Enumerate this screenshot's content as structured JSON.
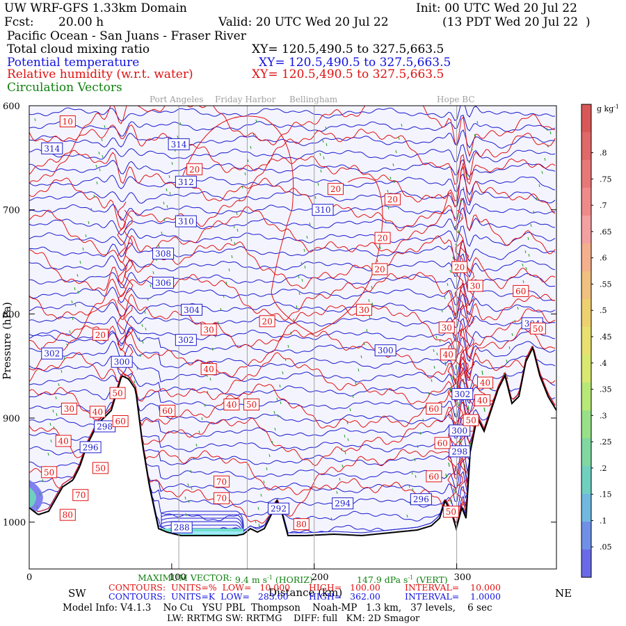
{
  "header": {
    "model": "UW WRF-GFS 1.33km Domain",
    "init": "Init: 00 UTC Wed 20 Jul 22",
    "fcst_label": "Fcst:",
    "fcst_value": "20.00 h",
    "valid": "Valid: 20 UTC Wed 20 Jul 22",
    "local": "(13 PDT Wed 20 Jul 22  )",
    "region": "Pacific Ocean - San Juans - Fraser River",
    "field1": "Total cloud mixing ratio",
    "field1_xy": "XY= 120.5,490.5 to 327.5,663.5",
    "field2": "Potential temperature",
    "field2_xy": "XY= 120.5,490.5 to 327.5,663.5",
    "field3": "Relative humidity (w.r.t. water)",
    "field3_xy": "XY= 120.5,490.5 to 327.5,663.5",
    "field4": "Circulation Vectors"
  },
  "places": {
    "port_angeles": "Port Angeles",
    "friday_harbor": "Friday Harbor",
    "bellingham": "Bellingham",
    "hope": "Hope BC"
  },
  "chart_data": {
    "type": "contour",
    "xlabel": "Distance (km)",
    "ylabel": "Pressure (hPa)",
    "x_ticks": [
      "0",
      "100",
      "200",
      "300"
    ],
    "x_tick_values": [
      0,
      100,
      200,
      300
    ],
    "xlim": [
      0,
      370
    ],
    "y_ticks": [
      "600",
      "700",
      "800",
      "900",
      "1000"
    ],
    "y_tick_values": [
      600,
      700,
      800,
      900,
      1000
    ],
    "ylim": [
      1045,
      600
    ],
    "direction_left": "SW",
    "direction_right": "NE",
    "vertical_lines_km": [
      105,
      153,
      200,
      300
    ],
    "theta_labels": [
      {
        "text": "314",
        "x": 16,
        "p": 641
      },
      {
        "text": "314",
        "x": 105,
        "p": 637
      },
      {
        "text": "312",
        "x": 110,
        "p": 673
      },
      {
        "text": "310",
        "x": 110,
        "p": 711
      },
      {
        "text": "310",
        "x": 206,
        "p": 700
      },
      {
        "text": "308",
        "x": 94,
        "p": 742
      },
      {
        "text": "306",
        "x": 94,
        "p": 770
      },
      {
        "text": "304",
        "x": 114,
        "p": 796
      },
      {
        "text": "302",
        "x": 110,
        "p": 825
      },
      {
        "text": "302",
        "x": 16,
        "p": 838
      },
      {
        "text": "300",
        "x": 65,
        "p": 846
      },
      {
        "text": "300",
        "x": 250,
        "p": 835
      },
      {
        "text": "304",
        "x": 353,
        "p": 809
      },
      {
        "text": "298",
        "x": 53,
        "p": 908
      },
      {
        "text": "296",
        "x": 43,
        "p": 928
      },
      {
        "text": "302",
        "x": 304,
        "p": 877
      },
      {
        "text": "300",
        "x": 302,
        "p": 912
      },
      {
        "text": "298",
        "x": 302,
        "p": 932
      },
      {
        "text": "296",
        "x": 275,
        "p": 978
      },
      {
        "text": "294",
        "x": 220,
        "p": 982
      },
      {
        "text": "292",
        "x": 175,
        "p": 987
      },
      {
        "text": "288",
        "x": 107,
        "p": 1005
      }
    ],
    "rh_labels": [
      {
        "text": "10",
        "x": 27,
        "p": 615
      },
      {
        "text": "20",
        "x": 116,
        "p": 661
      },
      {
        "text": "20",
        "x": 215,
        "p": 680
      },
      {
        "text": "20",
        "x": 255,
        "p": 690
      },
      {
        "text": "20",
        "x": 248,
        "p": 727
      },
      {
        "text": "20",
        "x": 246,
        "p": 757
      },
      {
        "text": "20",
        "x": 302,
        "p": 755
      },
      {
        "text": "30",
        "x": 313,
        "p": 773
      },
      {
        "text": "60",
        "x": 345,
        "p": 778
      },
      {
        "text": "30",
        "x": 235,
        "p": 796
      },
      {
        "text": "20",
        "x": 167,
        "p": 807
      },
      {
        "text": "30",
        "x": 126,
        "p": 815
      },
      {
        "text": "20",
        "x": 50,
        "p": 820
      },
      {
        "text": "30",
        "x": 293,
        "p": 813
      },
      {
        "text": "50",
        "x": 357,
        "p": 814
      },
      {
        "text": "40",
        "x": 126,
        "p": 853
      },
      {
        "text": "40",
        "x": 294,
        "p": 839
      },
      {
        "text": "40",
        "x": 320,
        "p": 866
      },
      {
        "text": "40",
        "x": 318,
        "p": 883
      },
      {
        "text": "50",
        "x": 62,
        "p": 876
      },
      {
        "text": "40",
        "x": 142,
        "p": 887
      },
      {
        "text": "50",
        "x": 156,
        "p": 887
      },
      {
        "text": "60",
        "x": 97,
        "p": 893
      },
      {
        "text": "30",
        "x": 28,
        "p": 891
      },
      {
        "text": "40",
        "x": 48,
        "p": 894
      },
      {
        "text": "60",
        "x": 64,
        "p": 903
      },
      {
        "text": "60",
        "x": 284,
        "p": 891
      },
      {
        "text": "50",
        "x": 310,
        "p": 902
      },
      {
        "text": "40",
        "x": 24,
        "p": 922
      },
      {
        "text": "50",
        "x": 50,
        "p": 948
      },
      {
        "text": "60",
        "x": 290,
        "p": 924
      },
      {
        "text": "60",
        "x": 284,
        "p": 956
      },
      {
        "text": "50",
        "x": 14,
        "p": 952
      },
      {
        "text": "70",
        "x": 36,
        "p": 974
      },
      {
        "text": "70",
        "x": 135,
        "p": 961
      },
      {
        "text": "70",
        "x": 135,
        "p": 977
      },
      {
        "text": "80",
        "x": 27,
        "p": 993
      },
      {
        "text": "80",
        "x": 191,
        "p": 1002
      },
      {
        "text": "50",
        "x": 296,
        "p": 990
      }
    ]
  },
  "colorbar": {
    "unit_g": "g",
    "unit_kg": "kg",
    "unit_exp": "-1",
    "labels": [
      ".8",
      ".75",
      ".7",
      ".65",
      ".6",
      ".55",
      ".5",
      ".45",
      ".4",
      ".35",
      ".3",
      ".25",
      ".2",
      ".15",
      ".1",
      ".05"
    ],
    "colors": [
      "#d85858",
      "#e06868",
      "#e87878",
      "#f08a8a",
      "#f4a0a0",
      "#f4b08c",
      "#f0c080",
      "#eed070",
      "#e8e070",
      "#d8e870",
      "#b8e878",
      "#98e088",
      "#80d8a0",
      "#70d0c0",
      "#70b8e0",
      "#7090e8",
      "#6a6ae8"
    ]
  },
  "footer": {
    "max_vector_label": "MAXIMUM VECTOR:",
    "max_vector_horiz": "9.4 m s",
    "max_vector_horiz_exp": "-1",
    "max_vector_horiz_tag": "(HORIZ)",
    "max_vector_vert": "147.9 dPa s",
    "max_vector_vert_exp": "-1",
    "max_vector_vert_tag": "(VERT)",
    "rh_contours": "CONTOURS:  UNITS=%  LOW=   10.000",
    "rh_high": "HIGH=   100.00",
    "rh_interval": "INTERVAL=    10.000",
    "th_contours": "CONTOURS:  UNITS=K  LOW=   283.00",
    "th_high": "HIGH=   362.00",
    "th_interval": "INTERVAL=    1.0000",
    "model_info": "Model Info: V4.1.3    No Cu   YSU PBL  Thompson    Noah-MP   1.3 km,   37 levels,    6 sec",
    "model_info2": "LW: RRTMG SW: RRTMG    DIFF: full   KM: 2D Smagor"
  }
}
